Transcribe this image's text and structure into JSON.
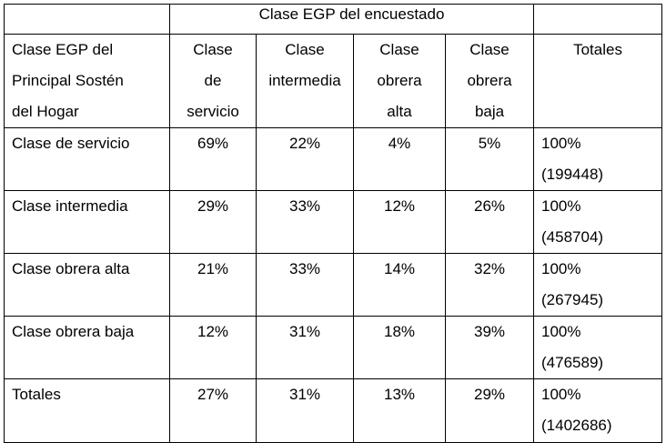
{
  "table": {
    "super_header": "Clase EGP del encuestado",
    "row_header_label": [
      "Clase EGP del",
      "Principal Sostén",
      "del Hogar"
    ],
    "column_headers": [
      [
        "Clase",
        "de",
        "servicio"
      ],
      [
        "Clase",
        "intermedia"
      ],
      [
        "Clase",
        "obrera",
        "alta"
      ],
      [
        "Clase",
        "obrera",
        "baja"
      ],
      [
        "Totales"
      ]
    ],
    "rows": [
      {
        "label": "Clase de servicio",
        "values": [
          "69%",
          "22%",
          "4%",
          "5%"
        ],
        "total_pct": "100%",
        "total_n": "(199448)"
      },
      {
        "label": "Clase intermedia",
        "values": [
          "29%",
          "33%",
          "12%",
          "26%"
        ],
        "total_pct": "100%",
        "total_n": "(458704)"
      },
      {
        "label": "Clase obrera alta",
        "values": [
          "21%",
          "33%",
          "14%",
          "32%"
        ],
        "total_pct": "100%",
        "total_n": "(267945)"
      },
      {
        "label": "Clase obrera baja",
        "values": [
          "12%",
          "31%",
          "18%",
          "39%"
        ],
        "total_pct": "100%",
        "total_n": "(476589)"
      },
      {
        "label": "Totales",
        "values": [
          "27%",
          "31%",
          "13%",
          "29%"
        ],
        "total_pct": "100%",
        "total_n": "(1402686)"
      }
    ]
  }
}
